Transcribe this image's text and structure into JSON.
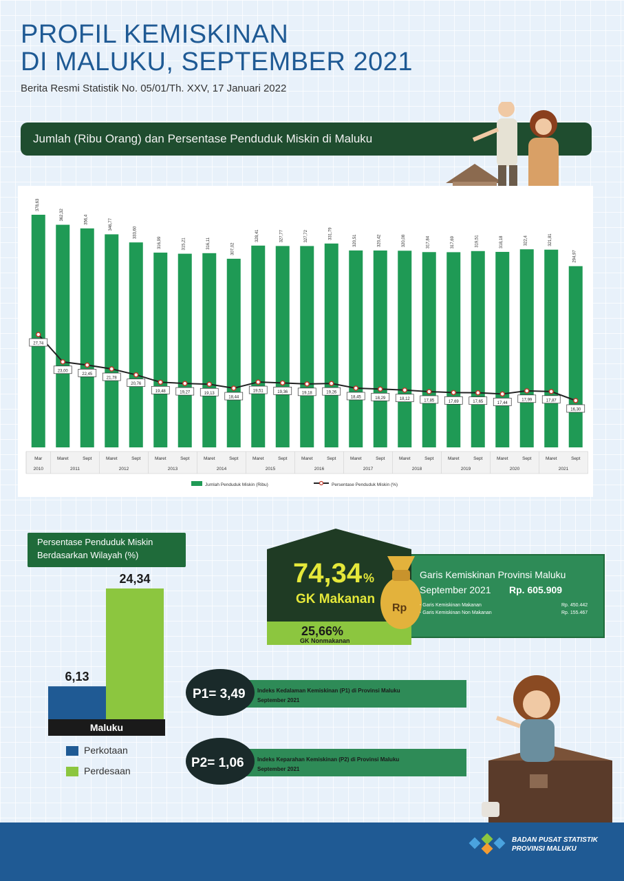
{
  "header": {
    "title_line1": "PROFIL KEMISKINAN",
    "title_line2": "DI MALUKU, SEPTEMBER 2021",
    "subtitle": "Berita Resmi Statistik No. 05/01/Th. XXV, 17 Januari 2022"
  },
  "banner": {
    "text": "Jumlah (Ribu Orang) dan Persentase Penduduk Miskin di Maluku"
  },
  "chart_data": [
    {
      "type": "bar",
      "title": "Jumlah (Ribu Orang) dan Persentase Penduduk Miskin di Maluku",
      "periods": [
        "Mar",
        "Maret",
        "Sept",
        "Maret",
        "Sept",
        "Maret",
        "Sept",
        "Maret",
        "Sept",
        "Maret",
        "Sept",
        "Maret",
        "Sept",
        "Maret",
        "Sept",
        "Maret",
        "Sept",
        "Maret",
        "Sept",
        "Maret",
        "Sept",
        "Maret",
        "Sept"
      ],
      "years": [
        "2010",
        "2011",
        "2012",
        "2013",
        "2014",
        "2015",
        "2016",
        "2017",
        "2018",
        "2019",
        "2020",
        "2021"
      ],
      "year_spans": [
        1,
        2,
        2,
        2,
        2,
        2,
        2,
        2,
        2,
        2,
        2,
        2
      ],
      "series": [
        {
          "name": "Jumlah Penduduk Miskin (Ribu)",
          "color": "#1f9a55",
          "labels": [
            "378,63",
            "362,32",
            "356,4",
            "346,77",
            "333,60",
            "316,99",
            "315,21",
            "316,11",
            "307,02",
            "328,41",
            "327,77",
            "327,72",
            "331,79",
            "320,51",
            "320,42",
            "320,08",
            "317,84",
            "317,69",
            "319,51",
            "318,18",
            "322,4",
            "321,81",
            "294,97"
          ],
          "values": [
            378.63,
            362.32,
            356.4,
            346.77,
            333.6,
            316.99,
            315.21,
            316.11,
            307.02,
            328.41,
            327.77,
            327.72,
            331.79,
            320.51,
            320.42,
            320.08,
            317.84,
            317.69,
            319.51,
            318.18,
            322.4,
            321.81,
            294.97
          ]
        },
        {
          "name": "Persentase Penduduk Miskin (%)",
          "color": "#222222",
          "labels": [
            "27,74",
            "23,00",
            "22,45",
            "21,78",
            "20,76",
            "19,48",
            "19,27",
            "19,13",
            "18,44",
            "19,51",
            "19,36",
            "19,18",
            "19,26",
            "18,45",
            "18,29",
            "18,12",
            "17,85",
            "17,69",
            "17,65",
            "17,44",
            "17,99",
            "17,87",
            "16,30"
          ],
          "values": [
            27.74,
            23.0,
            22.45,
            21.78,
            20.76,
            19.48,
            19.27,
            19.13,
            18.44,
            19.51,
            19.36,
            19.18,
            19.26,
            18.45,
            18.29,
            18.12,
            17.85,
            17.69,
            17.65,
            17.44,
            17.99,
            17.87,
            16.3
          ]
        }
      ],
      "legend": [
        "Jumlah Penduduk Miskin (Ribu)",
        "Persentase Penduduk Miskin (%)"
      ],
      "legend_position": "bottom"
    },
    {
      "type": "bar",
      "title": "Persentase Penduduk Miskin Berdasarkan Wilayah (%)",
      "categories": [
        "Maluku"
      ],
      "series": [
        {
          "name": "Perkotaan",
          "color": "#1f5a94",
          "values": [
            6.13
          ],
          "label": "6,13"
        },
        {
          "name": "Perdesaan",
          "color": "#8cc63f",
          "values": [
            24.34
          ],
          "label": "24,34"
        }
      ]
    }
  ],
  "region": {
    "title_line1": "Persentase Penduduk Miskin",
    "title_line2": "Berdasarkan Wilayah (%)",
    "category": "Maluku",
    "legend_urban": "Perkotaan",
    "legend_rural": "Perdesaan"
  },
  "gk": {
    "food_pct": "74,34",
    "pct_sign": "%",
    "food_label": "GK Makanan",
    "nonfood_pct": "25,66%",
    "nonfood_label": "GK Nonmakanan",
    "bag_label": "Rp",
    "box_title": "Garis Kemiskinan Provinsi Maluku",
    "box_period": "September 2021",
    "box_value": "Rp. 605.909",
    "item1_label": "- Garis Kemiskinan Makanan",
    "item1_value": "Rp. 450.442",
    "item2_label": "- Garis Kemiskinan Non Makanan",
    "item2_value": "Rp. 155.467"
  },
  "indices": {
    "p1_value": "P1= 3,49",
    "p1_text1": "Indeks Kedalaman Kemiskinan (P1) di Provinsi Maluku",
    "p1_text2": "September 2021",
    "p2_value": "P2= 1,06",
    "p2_text1": "Indeks Keparahan Kemiskinan (P2) di Provinsi Maluku",
    "p2_text2": "September 2021"
  },
  "footer": {
    "line1": "BADAN PUSAT STATISTIK",
    "line2": "PROVINSI MALUKU"
  },
  "colors": {
    "bar_green": "#1f9a55",
    "dark_green": "#1f4d2f",
    "blue": "#1f5a94",
    "light_green": "#8cc63f"
  }
}
